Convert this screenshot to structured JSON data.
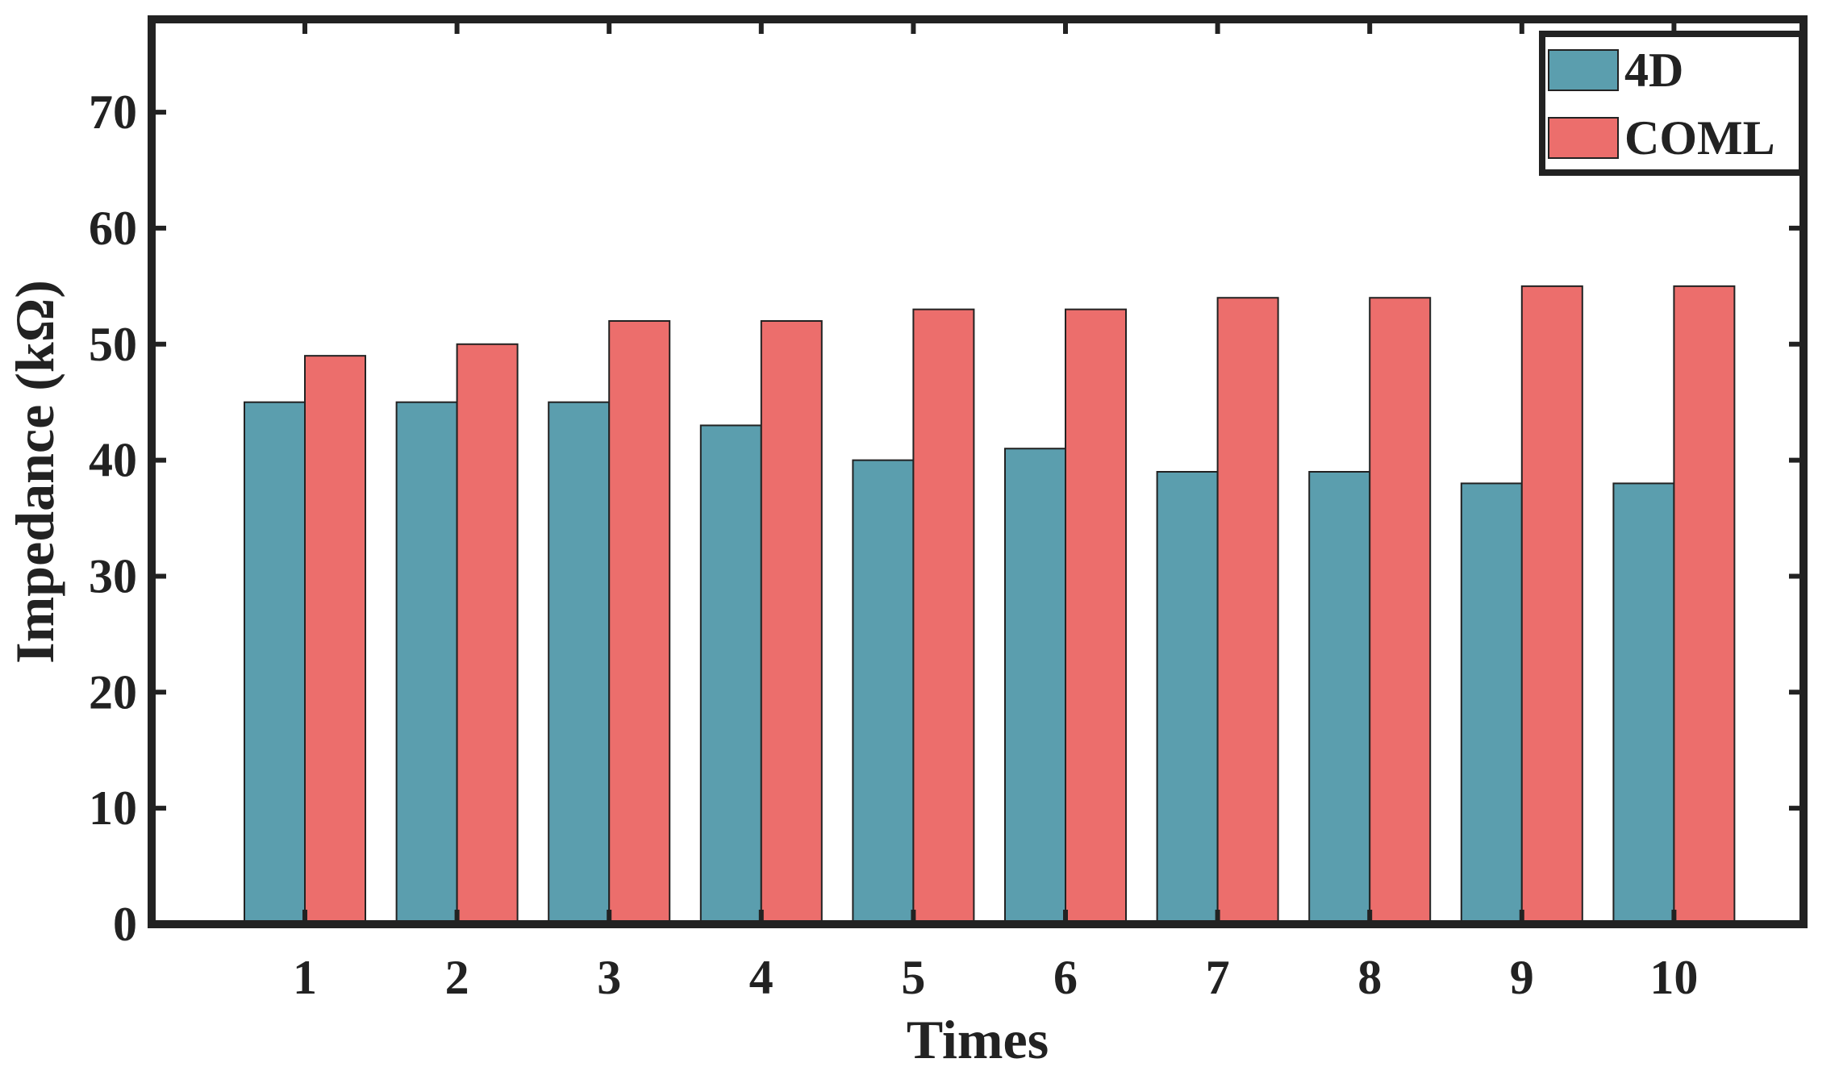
{
  "chart_data": {
    "type": "bar",
    "title": "",
    "xlabel": "Times",
    "ylabel": "Impedance (kΩ)",
    "categories": [
      "1",
      "2",
      "3",
      "4",
      "5",
      "6",
      "7",
      "8",
      "9",
      "10"
    ],
    "series": [
      {
        "name": "4D",
        "color": "#5b9eae",
        "values": [
          45,
          45,
          45,
          43,
          40,
          41,
          39,
          39,
          38,
          38
        ]
      },
      {
        "name": "COML",
        "color": "#ec6e6c",
        "values": [
          49,
          50,
          52,
          52,
          53,
          53,
          54,
          54,
          55,
          55
        ]
      }
    ],
    "ylim": [
      0,
      78
    ],
    "yticks": [
      "0",
      "10",
      "20",
      "30",
      "40",
      "50",
      "60",
      "70"
    ],
    "ytick_values": [
      0,
      10,
      20,
      30,
      40,
      50,
      60,
      70
    ],
    "grid": false,
    "legend_position": "top-right",
    "frame_color": "#222222"
  }
}
